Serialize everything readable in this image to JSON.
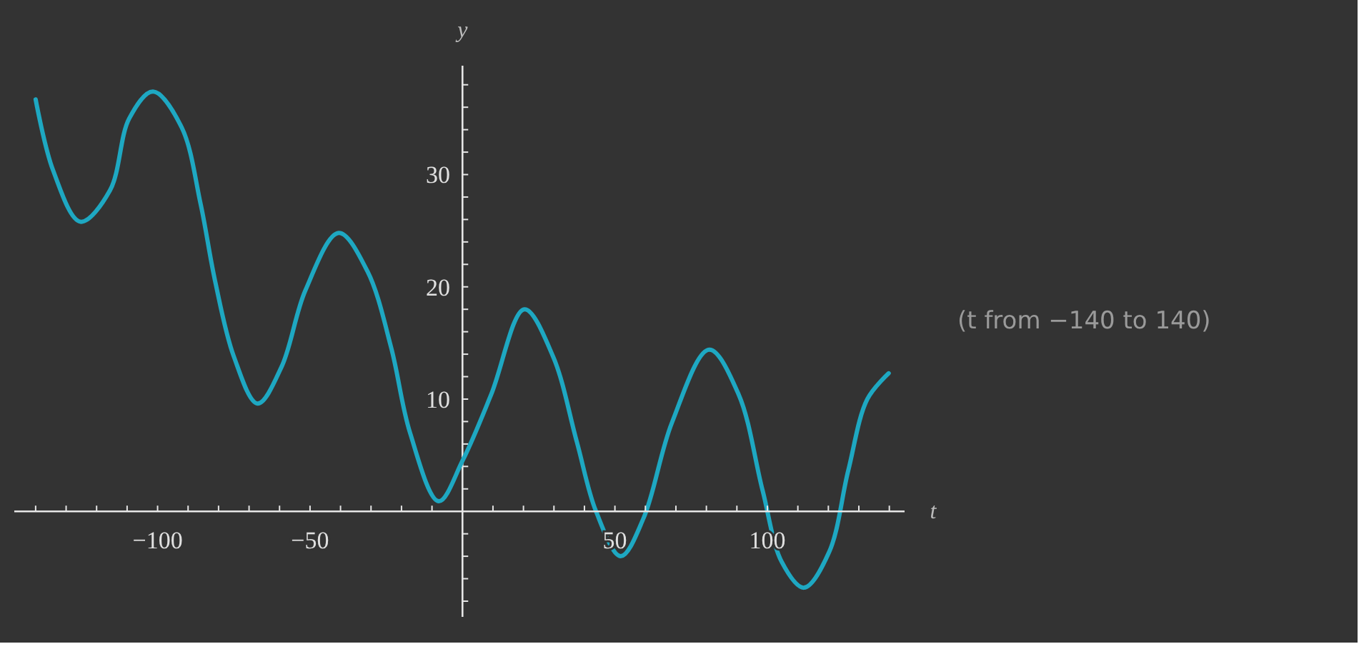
{
  "chart_data": {
    "type": "line",
    "xlabel": "t",
    "ylabel": "y",
    "annotations": [
      "(t from −140 to 140)"
    ],
    "xlim": [
      -147,
      145
    ],
    "ylim": [
      -9.4,
      39.7
    ],
    "xticks": [
      {
        "value": -140,
        "label": null
      },
      {
        "value": -130,
        "label": null
      },
      {
        "value": -120,
        "label": null
      },
      {
        "value": -110,
        "label": null
      },
      {
        "value": -100,
        "label": "−100"
      },
      {
        "value": -90,
        "label": null
      },
      {
        "value": -80,
        "label": null
      },
      {
        "value": -70,
        "label": null
      },
      {
        "value": -60,
        "label": null
      },
      {
        "value": -50,
        "label": "−50"
      },
      {
        "value": -40,
        "label": null
      },
      {
        "value": -30,
        "label": null
      },
      {
        "value": -20,
        "label": null
      },
      {
        "value": -10,
        "label": null
      },
      {
        "value": 10,
        "label": null
      },
      {
        "value": 20,
        "label": null
      },
      {
        "value": 30,
        "label": null
      },
      {
        "value": 40,
        "label": null
      },
      50,
      {
        "value": 60,
        "label": null
      },
      {
        "value": 70,
        "label": null
      },
      {
        "value": 80,
        "label": null
      },
      {
        "value": 90,
        "label": null
      },
      100,
      {
        "value": 110,
        "label": null
      },
      {
        "value": 120,
        "label": null
      },
      {
        "value": 130,
        "label": null
      },
      {
        "value": 140,
        "label": null
      }
    ],
    "yticks": [
      {
        "value": -8,
        "label": null
      },
      {
        "value": -6,
        "label": null
      },
      {
        "value": -4,
        "label": null
      },
      {
        "value": -2,
        "label": null
      },
      {
        "value": 2,
        "label": null
      },
      {
        "value": 4,
        "label": null
      },
      {
        "value": 6,
        "label": null
      },
      {
        "value": 8,
        "label": null
      },
      10,
      {
        "value": 12,
        "label": null
      },
      {
        "value": 14,
        "label": null
      },
      {
        "value": 16,
        "label": null
      },
      {
        "value": 18,
        "label": null
      },
      20,
      {
        "value": 22,
        "label": null
      },
      {
        "value": 24,
        "label": null
      },
      {
        "value": 26,
        "label": null
      },
      {
        "value": 28,
        "label": null
      },
      30,
      {
        "value": 32,
        "label": null
      },
      {
        "value": 34,
        "label": null
      },
      {
        "value": 36,
        "label": null
      },
      {
        "value": 38,
        "label": null
      }
    ],
    "marker": "none",
    "line_style": "solid",
    "series": [
      {
        "color": "#1ea8c2",
        "x": [
          -140,
          -134.3,
          -125.3,
          -115.6,
          -109.3,
          -101.5,
          -92.1,
          -85.9,
          -81.2,
          -75,
          -67.2,
          -59.3,
          -51.5,
          -40.6,
          -31.2,
          -23.4,
          -17.2,
          -7.8,
          0,
          9.4,
          20.3,
          29.7,
          37.5,
          43.8,
          51.9,
          59.4,
          68.7,
          80.9,
          90.6,
          98.4,
          104.7,
          112,
          120.3,
          126.5,
          132.8,
          139.8
        ],
        "values": [
          36.7,
          30.4,
          25.8,
          28.6,
          35,
          37.4,
          34.2,
          27.4,
          20.6,
          13.8,
          9.6,
          12.9,
          19.7,
          24.8,
          21.4,
          14.6,
          7,
          0.9,
          4.5,
          10.4,
          18,
          13.8,
          6.2,
          0,
          -4,
          -0.6,
          7.9,
          14.4,
          10.4,
          1.9,
          -4.5,
          -6.8,
          -3.6,
          3.6,
          10,
          12.3
        ]
      }
    ]
  }
}
